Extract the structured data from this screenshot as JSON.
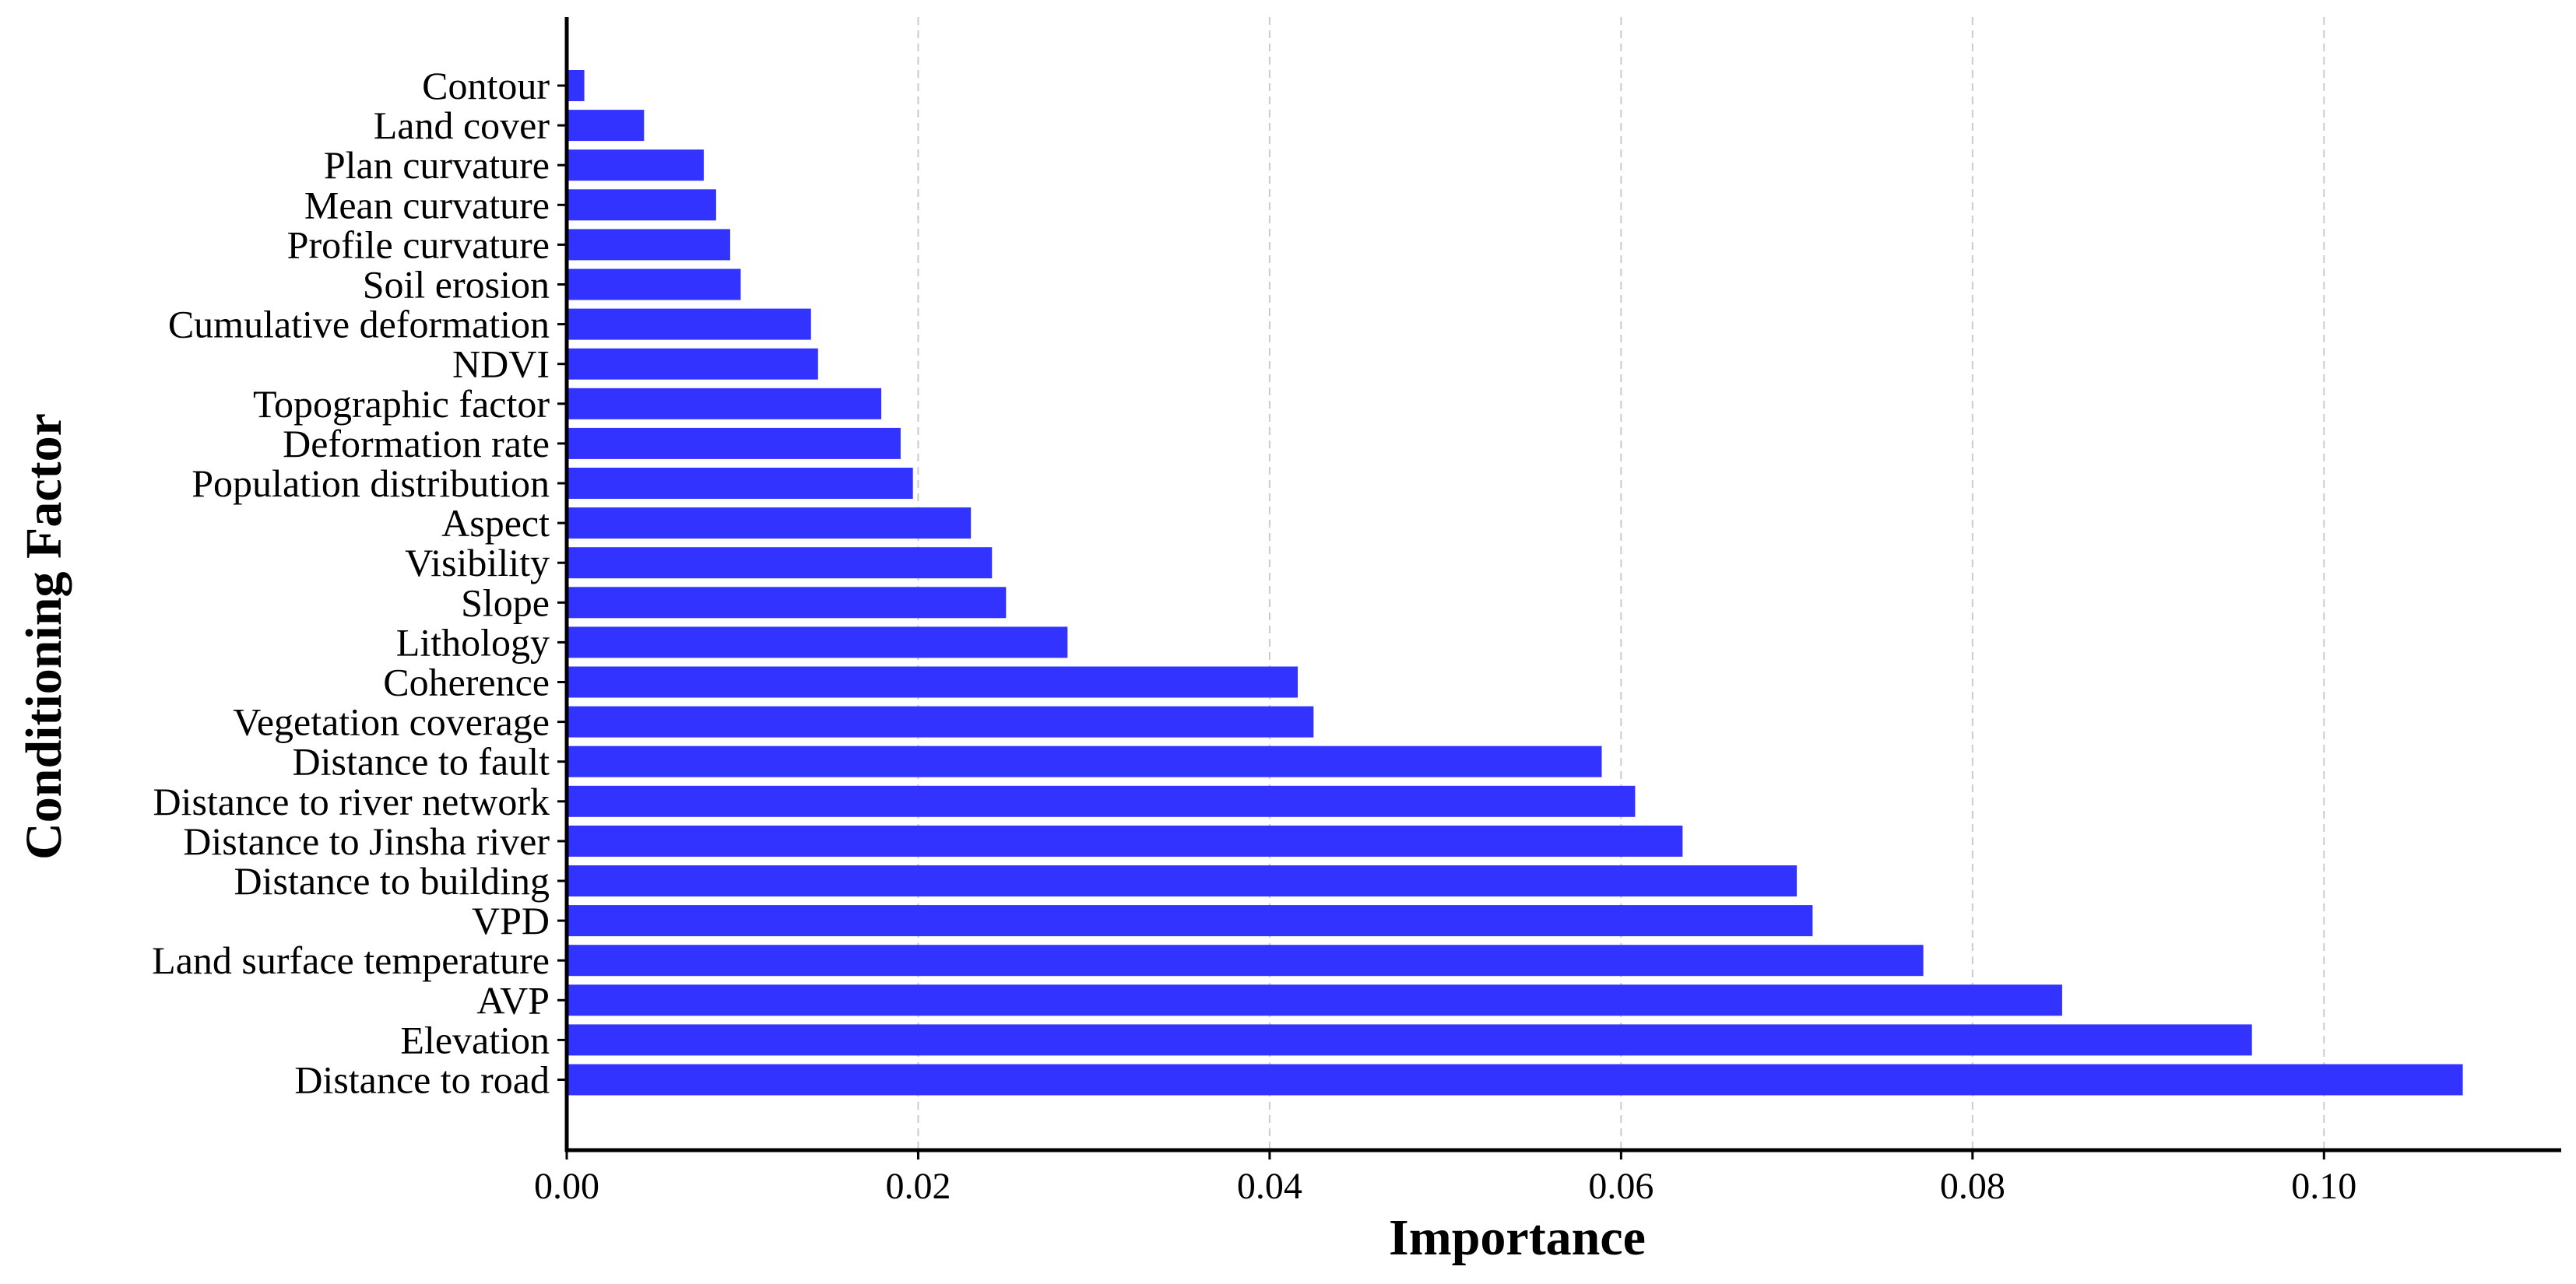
{
  "chart_data": {
    "type": "bar",
    "orientation": "horizontal",
    "title": "",
    "xlabel": "Importance",
    "ylabel": "Conditioning Factor",
    "bar_color": "#3333ff",
    "xlim": [
      0,
      0.1135
    ],
    "xticks": [
      0.0,
      0.02,
      0.04,
      0.06,
      0.08,
      0.1
    ],
    "xtick_labels": [
      "0.00",
      "0.02",
      "0.04",
      "0.06",
      "0.08",
      "0.10"
    ],
    "grid": "vertical dashed",
    "categories": [
      "Contour",
      "Land cover",
      "Plan curvature",
      "Mean curvature",
      "Profile curvature",
      "Soil erosion",
      "Cumulative deformation",
      "NDVI",
      "Topographic factor",
      "Deformation rate",
      "Population distribution",
      "Aspect",
      "Visibility",
      "Slope",
      "Lithology",
      "Coherence",
      "Vegetation coverage",
      "Distance to fault",
      "Distance to river network",
      "Distance to Jinsha river",
      "Distance to building",
      "VPD",
      "Land surface temperature",
      "AVP",
      "Elevation",
      "Distance to road"
    ],
    "values": [
      0.001,
      0.0044,
      0.0078,
      0.0085,
      0.0093,
      0.0099,
      0.0139,
      0.0143,
      0.0179,
      0.019,
      0.0197,
      0.023,
      0.0242,
      0.025,
      0.0285,
      0.0416,
      0.0425,
      0.0589,
      0.0608,
      0.0635,
      0.07,
      0.0709,
      0.0772,
      0.0851,
      0.0959,
      0.1079
    ]
  }
}
